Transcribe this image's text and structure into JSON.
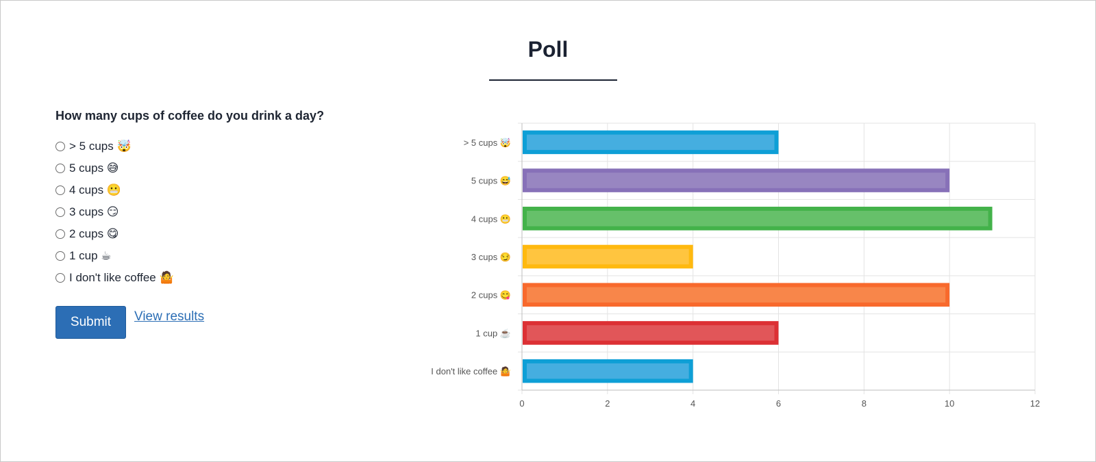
{
  "page": {
    "title": "Poll"
  },
  "poll": {
    "question": "How many cups of coffee do you drink a day?",
    "options": [
      {
        "label": "> 5 cups 🤯"
      },
      {
        "label": "5 cups 😅"
      },
      {
        "label": "4 cups 😬"
      },
      {
        "label": "3 cups 😏"
      },
      {
        "label": "2 cups 😋"
      },
      {
        "label": "1 cup ☕"
      },
      {
        "label": "I don't like coffee 🤷"
      }
    ],
    "submit_label": "Submit",
    "view_results_label": "View results"
  },
  "chart_data": {
    "type": "bar",
    "orientation": "horizontal",
    "categories": [
      "> 5 cups 🤯",
      "5 cups 😅",
      "4 cups 😬",
      "3 cups 😏",
      "2 cups 😋",
      "1 cup ☕",
      "I don't like coffee 🤷"
    ],
    "values": [
      6,
      10,
      11,
      4,
      10,
      6,
      4
    ],
    "colors": [
      "#0e9fd6",
      "#8771b8",
      "#43b24a",
      "#ffb90f",
      "#f8692c",
      "#dc3034",
      "#0e9fd6"
    ],
    "fill_colors": [
      "#45aee0",
      "#9886c1",
      "#66c06a",
      "#ffc53f",
      "#f8864a",
      "#e15659",
      "#45aee0"
    ],
    "xlim": [
      0,
      12
    ],
    "xticks": [
      0,
      2,
      4,
      6,
      8,
      10,
      12
    ],
    "grid": true,
    "legend": "none"
  }
}
